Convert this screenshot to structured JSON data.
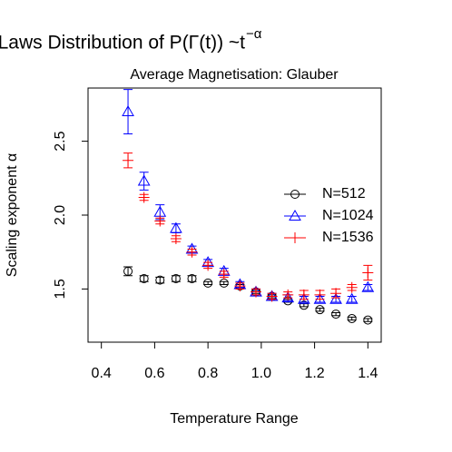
{
  "chart_data": {
    "type": "errorbar-scatter",
    "title": "Power−Laws Distribution of P(Γ(t)) ~t",
    "title_superscript": "−α",
    "subtitle": "Average Magnetisation: Glauber",
    "x_label": "Temperature Range",
    "y_label": "Scaling exponent α",
    "x": [
      0.5,
      0.56,
      0.62,
      0.68,
      0.74,
      0.8,
      0.86,
      0.92,
      0.98,
      1.04,
      1.1,
      1.16,
      1.22,
      1.28,
      1.34,
      1.4
    ],
    "series": [
      {
        "name": "N=512",
        "color": "#000000",
        "marker": "circle",
        "values": [
          1.62,
          1.57,
          1.56,
          1.57,
          1.57,
          1.54,
          1.54,
          1.52,
          1.48,
          1.45,
          1.42,
          1.39,
          1.36,
          1.33,
          1.3,
          1.29
        ],
        "errors": [
          0.03,
          0.02,
          0.02,
          0.02,
          0.02,
          0.01,
          0.01,
          0.01,
          0.01,
          0.01,
          0.01,
          0.01,
          0.01,
          0.01,
          0.01,
          0.01
        ]
      },
      {
        "name": "N=1024",
        "color": "#0000ff",
        "marker": "triangle",
        "values": [
          2.7,
          2.23,
          2.02,
          1.91,
          1.77,
          1.68,
          1.62,
          1.53,
          1.48,
          1.45,
          1.44,
          1.43,
          1.43,
          1.43,
          1.43,
          1.51
        ],
        "errors": [
          0.15,
          0.06,
          0.05,
          0.03,
          0.02,
          0.02,
          0.02,
          0.02,
          0.02,
          0.02,
          0.02,
          0.02,
          0.02,
          0.02,
          0.02,
          0.02
        ]
      },
      {
        "name": "N=1536",
        "color": "#ff0000",
        "marker": "plus",
        "values": [
          2.37,
          2.12,
          1.96,
          1.84,
          1.75,
          1.66,
          1.6,
          1.52,
          1.48,
          1.45,
          1.46,
          1.46,
          1.46,
          1.47,
          1.51,
          1.61
        ],
        "errors": [
          0.05,
          0.02,
          0.02,
          0.02,
          0.02,
          0.02,
          0.02,
          0.02,
          0.02,
          0.02,
          0.02,
          0.03,
          0.03,
          0.03,
          0.02,
          0.05
        ]
      }
    ],
    "xlim": [
      0.35,
      1.45
    ],
    "ylim": [
      1.14,
      2.86
    ],
    "xticks": [
      0.4,
      0.6,
      0.8,
      {
        "value": 1,
        "label": "1.0"
      },
      1.2,
      1.4
    ],
    "yticks": [
      1.5,
      {
        "value": 2,
        "label": "2.0"
      },
      2.5
    ],
    "legend_position": "right"
  }
}
